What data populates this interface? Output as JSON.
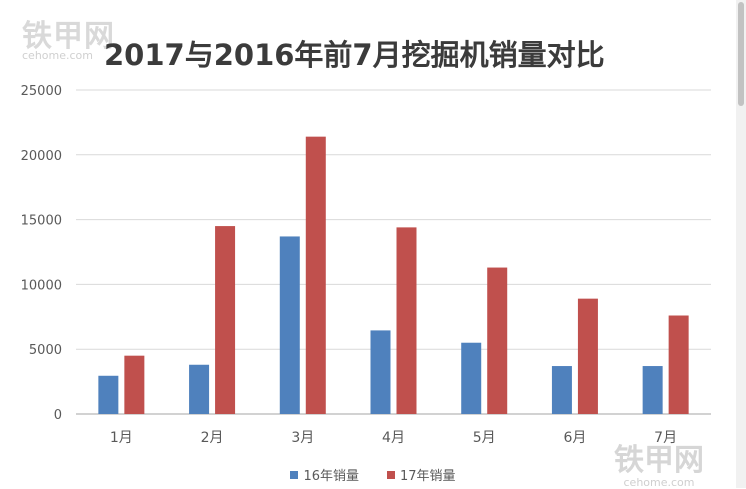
{
  "watermark": {
    "cn": "铁甲网",
    "en": "cehome.com"
  },
  "colors": {
    "series16": "#4f81bd",
    "series17": "#c0504d",
    "grid": "#d9d9d9",
    "axis": "#a6a6a6",
    "text": "#595959"
  },
  "chart_data": {
    "type": "bar",
    "title": "2017与2016年前7月挖掘机销量对比",
    "categories": [
      "1月",
      "2月",
      "3月",
      "4月",
      "5月",
      "6月",
      "7月"
    ],
    "series": [
      {
        "name": "16年销量",
        "values": [
          2950,
          3800,
          13700,
          6450,
          5500,
          3700,
          3700
        ]
      },
      {
        "name": "17年销量",
        "values": [
          4500,
          14500,
          21400,
          14400,
          11300,
          8900,
          7600
        ]
      }
    ],
    "yticks": [
      "0",
      "5000",
      "10000",
      "15000",
      "20000",
      "25000"
    ],
    "ylim": [
      0,
      25000
    ],
    "grid": true,
    "legend": "bottom"
  }
}
